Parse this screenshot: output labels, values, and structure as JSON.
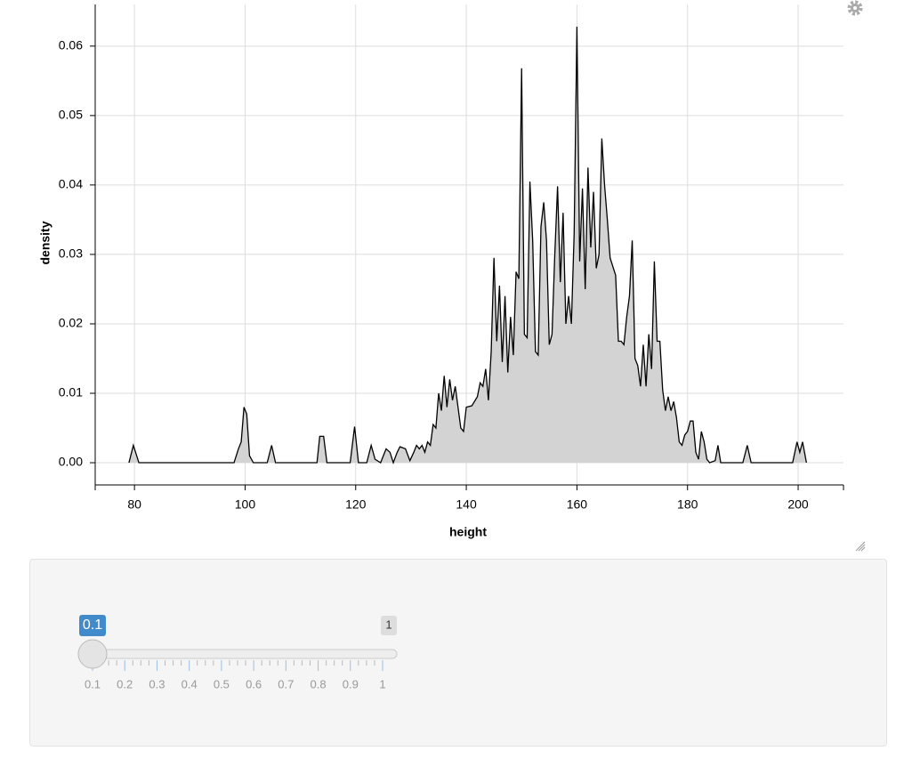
{
  "chart_data": {
    "type": "area",
    "x_label": "height",
    "y_label": "density",
    "x": [
      79,
      79.8,
      80.8,
      98,
      98.8,
      99.3,
      99.8,
      100.3,
      100.8,
      101.5,
      104,
      104.8,
      105.5,
      113,
      113.5,
      114.2,
      114.8,
      119,
      119.8,
      120.5,
      122,
      122.8,
      123.5,
      124.5,
      125.5,
      126.2,
      126.8,
      127.5,
      128,
      129,
      129.8,
      130.5,
      131,
      131.5,
      132,
      132.5,
      133,
      133.5,
      134,
      134.5,
      135,
      135.5,
      136,
      136.5,
      137,
      137.5,
      138,
      138.5,
      139,
      139.5,
      140,
      141,
      142,
      142.5,
      143,
      143.5,
      144,
      144.5,
      145,
      145.5,
      146,
      146.5,
      147,
      147.5,
      148,
      148.5,
      149,
      149.5,
      150,
      150.5,
      151,
      151.5,
      152,
      152.5,
      153,
      153.5,
      154,
      154.5,
      155,
      155.5,
      156,
      156.5,
      157,
      157.5,
      158,
      158.5,
      159,
      159.5,
      160,
      160.5,
      161,
      161.5,
      162,
      162.5,
      163,
      163.5,
      164,
      164.5,
      165,
      165.5,
      166,
      167,
      167.5,
      168,
      168.5,
      169,
      169.5,
      170,
      170.5,
      171,
      171.5,
      172,
      172.5,
      173,
      173.5,
      174,
      174.5,
      175,
      175.5,
      176,
      176.5,
      177,
      177.5,
      178,
      178.5,
      179,
      179.5,
      180,
      180.5,
      181,
      181.5,
      182,
      182.5,
      183,
      183.5,
      184,
      185,
      185.5,
      186,
      190,
      190.8,
      191.5,
      199,
      199.8,
      200.3,
      200.8,
      201.5
    ],
    "values": [
      0,
      0.0025,
      0,
      0,
      0.002,
      0.003,
      0.008,
      0.007,
      0.001,
      0,
      0,
      0.0025,
      0,
      0,
      0.0038,
      0.0038,
      0,
      0,
      0.0052,
      0,
      0,
      0.0025,
      0.0005,
      0,
      0.002,
      0.0015,
      0,
      0.0015,
      0.0023,
      0.002,
      0.0003,
      0.0015,
      0.0025,
      0.002,
      0.0025,
      0.0015,
      0.003,
      0.0025,
      0.0055,
      0.005,
      0.01,
      0.0075,
      0.0125,
      0.008,
      0.012,
      0.009,
      0.011,
      0.008,
      0.005,
      0.0045,
      0.008,
      0.0082,
      0.0095,
      0.0115,
      0.011,
      0.0135,
      0.009,
      0.016,
      0.0295,
      0.0175,
      0.0255,
      0.0145,
      0.024,
      0.013,
      0.021,
      0.0155,
      0.0275,
      0.0265,
      0.0568,
      0.0185,
      0.018,
      0.0405,
      0.032,
      0.016,
      0.0155,
      0.034,
      0.0375,
      0.032,
      0.017,
      0.0185,
      0.03,
      0.0398,
      0.026,
      0.036,
      0.02,
      0.024,
      0.02,
      0.033,
      0.0628,
      0.029,
      0.0395,
      0.025,
      0.0425,
      0.031,
      0.039,
      0.028,
      0.03,
      0.0467,
      0.04,
      0.035,
      0.0295,
      0.027,
      0.0175,
      0.0175,
      0.017,
      0.021,
      0.024,
      0.032,
      0.015,
      0.014,
      0.011,
      0.017,
      0.011,
      0.0185,
      0.0135,
      0.029,
      0.0175,
      0.0175,
      0.0105,
      0.0075,
      0.0095,
      0.0075,
      0.0088,
      0.0065,
      0.003,
      0.0025,
      0.004,
      0.0045,
      0.006,
      0.006,
      0.0015,
      0.0005,
      0.0045,
      0.003,
      0.0005,
      0,
      0.0003,
      0.0025,
      0,
      0,
      0.0025,
      0,
      0,
      0.003,
      0.0015,
      0.003,
      0
    ],
    "color": "#d3d3d3",
    "line_color": "#000000",
    "xlim": [
      72.9,
      208.2
    ],
    "xticks": [
      80,
      100,
      120,
      140,
      160,
      180,
      200
    ],
    "ylim": [
      -0.0032,
      0.066
    ],
    "yticks": [
      {
        "value": 0,
        "label": "0.00"
      },
      {
        "value": 0.01,
        "label": "0.01"
      },
      {
        "value": 0.02,
        "label": "0.02"
      },
      {
        "value": 0.03,
        "label": "0.03"
      },
      {
        "value": 0.04,
        "label": "0.04"
      },
      {
        "value": 0.05,
        "label": "0.05"
      },
      {
        "value": 0.06,
        "label": "0.06"
      }
    ],
    "grid": true
  },
  "slider": {
    "min": 0.1,
    "max": 1,
    "value": 0.1,
    "ticks": [
      0.1,
      0.2,
      0.3,
      0.4,
      0.5,
      0.6,
      0.7,
      0.8,
      0.9,
      1
    ]
  }
}
